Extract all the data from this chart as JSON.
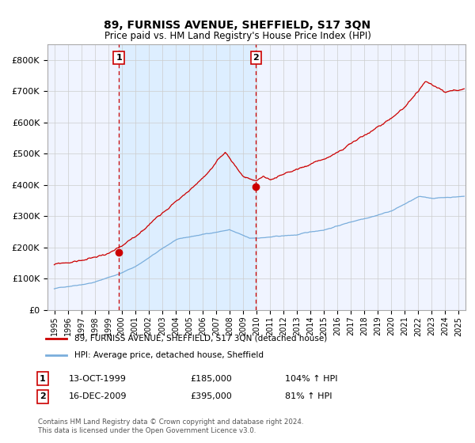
{
  "title": "89, FURNISS AVENUE, SHEFFIELD, S17 3QN",
  "subtitle": "Price paid vs. HM Land Registry's House Price Index (HPI)",
  "xlim": [
    1994.5,
    2025.5
  ],
  "ylim": [
    0,
    850000
  ],
  "yticks": [
    0,
    100000,
    200000,
    300000,
    400000,
    500000,
    600000,
    700000,
    800000
  ],
  "ytick_labels": [
    "£0",
    "£100K",
    "£200K",
    "£300K",
    "£400K",
    "£500K",
    "£600K",
    "£700K",
    "£800K"
  ],
  "xtick_years": [
    1995,
    1996,
    1997,
    1998,
    1999,
    2000,
    2001,
    2002,
    2003,
    2004,
    2005,
    2006,
    2007,
    2008,
    2009,
    2010,
    2011,
    2012,
    2013,
    2014,
    2015,
    2016,
    2017,
    2018,
    2019,
    2020,
    2021,
    2022,
    2023,
    2024,
    2025
  ],
  "sale1_x": 1999.79,
  "sale1_y": 185000,
  "sale1_label": "1",
  "sale1_date": "13-OCT-1999",
  "sale1_price": "£185,000",
  "sale1_hpi": "104% ↑ HPI",
  "sale2_x": 2009.96,
  "sale2_y": 395000,
  "sale2_label": "2",
  "sale2_date": "16-DEC-2009",
  "sale2_price": "£395,000",
  "sale2_hpi": "81% ↑ HPI",
  "shading_color": "#ddeeff",
  "vline_color": "#cc0000",
  "red_line_color": "#cc0000",
  "blue_line_color": "#7aaedc",
  "grid_color": "#cccccc",
  "bg_color": "#f0f4ff",
  "legend_label_red": "89, FURNISS AVENUE, SHEFFIELD, S17 3QN (detached house)",
  "legend_label_blue": "HPI: Average price, detached house, Sheffield",
  "footnote": "Contains HM Land Registry data © Crown copyright and database right 2024.\nThis data is licensed under the Open Government Licence v3.0."
}
